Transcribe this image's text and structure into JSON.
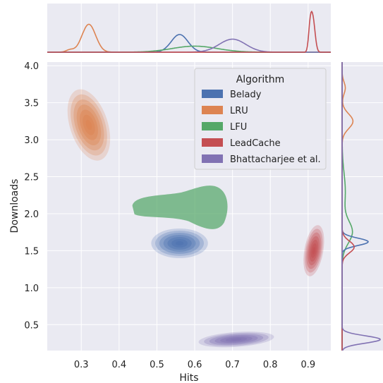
{
  "chart_data": {
    "type": "kde_joint",
    "xlabel": "Hits",
    "ylabel": "Downloads",
    "xlim": [
      0.21,
      0.96
    ],
    "ylim": [
      0.15,
      4.05
    ],
    "xticks": [
      0.3,
      0.4,
      0.5,
      0.6,
      0.7,
      0.8,
      0.9
    ],
    "yticks": [
      0.5,
      1.0,
      1.5,
      2.0,
      2.5,
      3.0,
      3.5,
      4.0
    ],
    "grid": true,
    "legend": {
      "title": "Algorithm",
      "placement": "top-right"
    },
    "series": [
      {
        "name": "Belady",
        "color": "#4c72b0",
        "filled_contours": true,
        "center": [
          0.56,
          1.6
        ],
        "x_range": [
          0.49,
          0.64
        ],
        "y_range": [
          1.4,
          1.8
        ],
        "x_mode": 0.56,
        "y_mode": 1.62
      },
      {
        "name": "LRU",
        "color": "#dd8452",
        "filled_contours": true,
        "center": [
          0.32,
          3.2
        ],
        "x_range": [
          0.27,
          0.37
        ],
        "y_range": [
          2.8,
          3.8
        ],
        "x_mode": 0.32,
        "y_mode": 3.25
      },
      {
        "name": "LFU",
        "color": "#55a868",
        "filled_contours": false,
        "center": [
          0.58,
          2.05
        ],
        "x_range": [
          0.49,
          0.66
        ],
        "y_range": [
          1.8,
          2.3
        ],
        "x_mode": 0.62,
        "y_mode": 1.75
      },
      {
        "name": "LeadCache",
        "color": "#c44e52",
        "filled_contours": true,
        "center": [
          0.915,
          1.5
        ],
        "x_range": [
          0.89,
          0.94
        ],
        "y_range": [
          1.2,
          1.9
        ],
        "x_mode": 0.915,
        "y_mode": 1.55
      },
      {
        "name": "Bhattacharjee et al.",
        "color": "#8172b3",
        "filled_contours": true,
        "center": [
          0.71,
          0.3
        ],
        "x_range": [
          0.61,
          0.81
        ],
        "y_range": [
          0.2,
          0.4
        ],
        "x_mode": 0.7,
        "y_mode": 0.3
      }
    ]
  }
}
